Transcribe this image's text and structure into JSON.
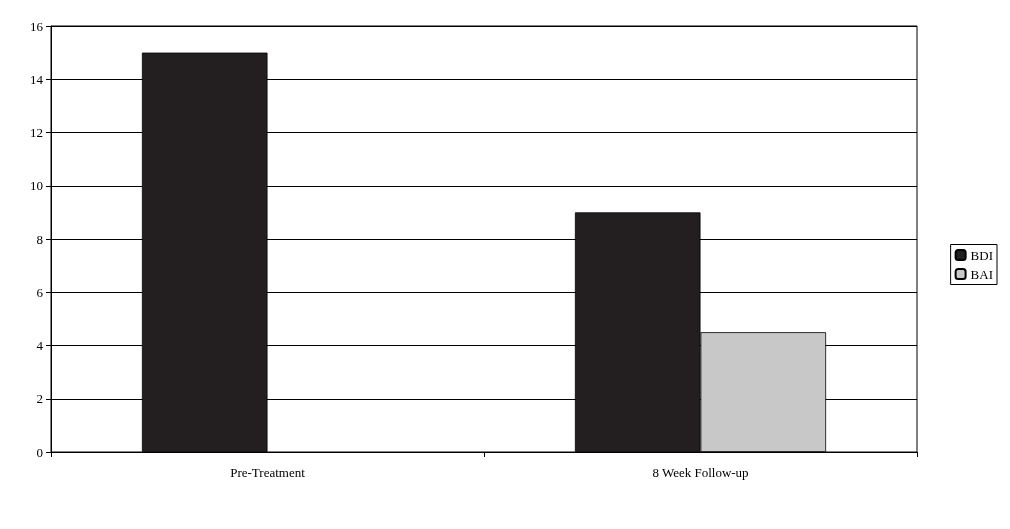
{
  "chart_data": {
    "type": "bar",
    "categories": [
      "Pre-Treatment",
      "8 Week Follow-up"
    ],
    "series": [
      {
        "name": "BDI",
        "color": "#231f20",
        "values": [
          15,
          9
        ]
      },
      {
        "name": "BAI",
        "color": "#c8c8c8",
        "values": [
          null,
          4.5
        ]
      }
    ],
    "ylim": [
      0,
      16
    ],
    "yticks": [
      0,
      2,
      4,
      6,
      8,
      10,
      12,
      14,
      16
    ],
    "grid": "y",
    "legend": "right"
  }
}
